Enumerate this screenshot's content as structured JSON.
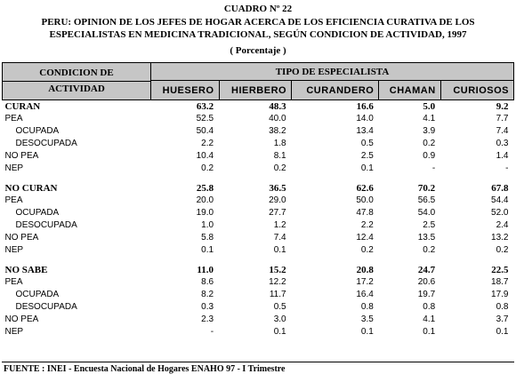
{
  "cuadro": "CUADRO Nº 22",
  "title_line1": "PERU: OPINION DE LOS JEFES DE HOGAR ACERCA DE LOS EFICIENCIA CURATIVA DE LOS",
  "title_line2": "ESPECIALISTAS EN MEDICINA TRADICIONAL, SEGÚN CONDICION DE ACTIVIDAD, 1997",
  "subtitle": "( Porcentaje )",
  "header": {
    "cond1": "CONDICION DE",
    "cond2": "ACTIVIDAD",
    "tipo": "TIPO DE ESPECIALISTA",
    "columns": [
      "HUESERO",
      "HIERBERO",
      "CURANDERO",
      "CHAMAN",
      "CURIOSOS"
    ]
  },
  "rows": [
    {
      "label": "CURAN",
      "values": [
        "63.2",
        "48.3",
        "16.6",
        "5.0",
        "9.2"
      ]
    },
    {
      "label": "PEA",
      "values": [
        "52.5",
        "40.0",
        "14.0",
        "4.1",
        "7.7"
      ]
    },
    {
      "label": "OCUPADA",
      "values": [
        "50.4",
        "38.2",
        "13.4",
        "3.9",
        "7.4"
      ]
    },
    {
      "label": "DESOCUPADA",
      "values": [
        "2.2",
        "1.8",
        "0.5",
        "0.2",
        "0.3"
      ]
    },
    {
      "label": "NO PEA",
      "values": [
        "10.4",
        "8.1",
        "2.5",
        "0.9",
        "1.4"
      ]
    },
    {
      "label": "NEP",
      "values": [
        "0.2",
        "0.2",
        "0.1",
        "-",
        "-"
      ]
    },
    {
      "label": "NO CURAN",
      "values": [
        "25.8",
        "36.5",
        "62.6",
        "70.2",
        "67.8"
      ]
    },
    {
      "label": "PEA",
      "values": [
        "20.0",
        "29.0",
        "50.0",
        "56.5",
        "54.4"
      ]
    },
    {
      "label": "OCUPADA",
      "values": [
        "19.0",
        "27.7",
        "47.8",
        "54.0",
        "52.0"
      ]
    },
    {
      "label": "DESOCUPADA",
      "values": [
        "1.0",
        "1.2",
        "2.2",
        "2.5",
        "2.4"
      ]
    },
    {
      "label": "NO PEA",
      "values": [
        "5.8",
        "7.4",
        "12.4",
        "13.5",
        "13.2"
      ]
    },
    {
      "label": "NEP",
      "values": [
        "0.1",
        "0.1",
        "0.2",
        "0.2",
        "0.2"
      ]
    },
    {
      "label": "NO SABE",
      "values": [
        "11.0",
        "15.2",
        "20.8",
        "24.7",
        "22.5"
      ]
    },
    {
      "label": "PEA",
      "values": [
        "8.6",
        "12.2",
        "17.2",
        "20.6",
        "18.7"
      ]
    },
    {
      "label": "OCUPADA",
      "values": [
        "8.2",
        "11.7",
        "16.4",
        "19.7",
        "17.9"
      ]
    },
    {
      "label": "DESOCUPADA",
      "values": [
        "0.3",
        "0.5",
        "0.8",
        "0.8",
        "0.8"
      ]
    },
    {
      "label": "NO PEA",
      "values": [
        "2.3",
        "3.0",
        "3.5",
        "4.1",
        "3.7"
      ]
    },
    {
      "label": "NEP",
      "values": [
        "-",
        "0.1",
        "0.1",
        "0.1",
        "0.1"
      ]
    }
  ],
  "source": "FUENTE : INEI - Encuesta Nacional de Hogares ENAHO 97 - I Trimestre"
}
